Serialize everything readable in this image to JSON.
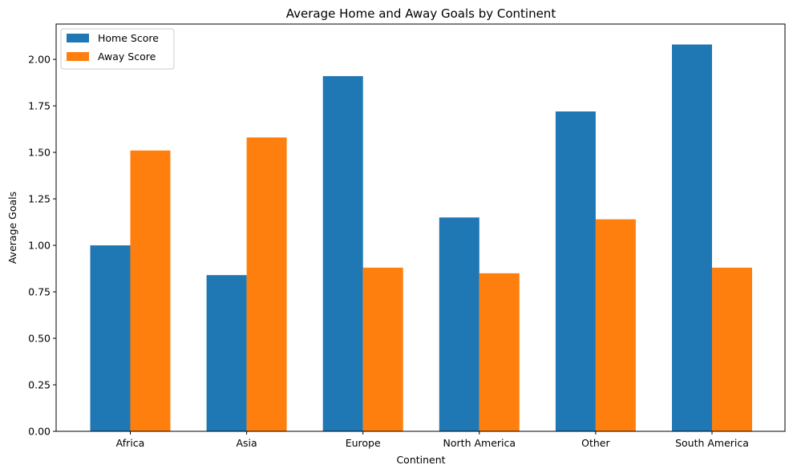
{
  "chart_data": {
    "type": "bar",
    "title": "Average Home and Away Goals by Continent",
    "xlabel": "Continent",
    "ylabel": "Average Goals",
    "categories": [
      "Africa",
      "Asia",
      "Europe",
      "North America",
      "Other",
      "South America"
    ],
    "series": [
      {
        "name": "Home Score",
        "color": "#1f77b4",
        "values": [
          1.0,
          0.84,
          1.91,
          1.15,
          1.72,
          2.08
        ]
      },
      {
        "name": "Away Score",
        "color": "#ff7f0e",
        "values": [
          1.51,
          1.58,
          0.88,
          0.85,
          1.14,
          0.88
        ]
      }
    ],
    "ylim": [
      0,
      2.19
    ],
    "yticks": [
      "0.00",
      "0.25",
      "0.50",
      "0.75",
      "1.00",
      "1.25",
      "1.50",
      "1.75",
      "2.00"
    ],
    "legend": "top-left",
    "grid": false
  }
}
